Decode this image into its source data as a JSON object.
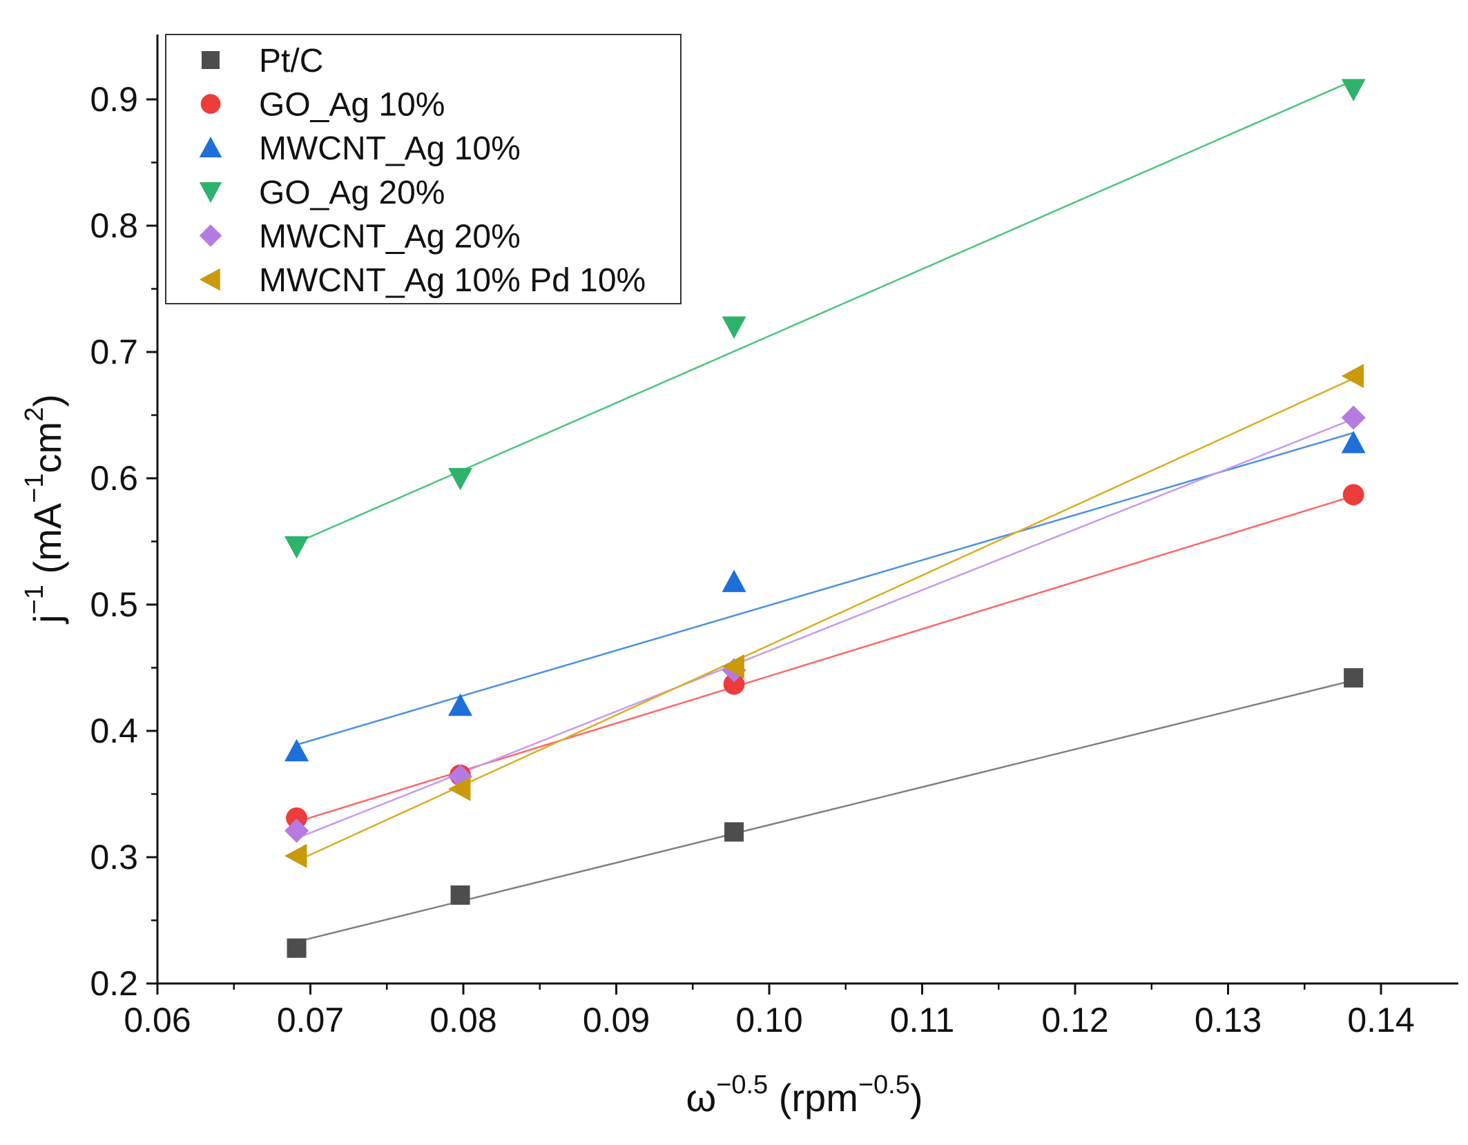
{
  "chart_data": {
    "type": "scatter",
    "title": "",
    "xlabel": {
      "base": "ω",
      "exp": "−0.5",
      "unit_pre": " (rpm",
      "unit_exp": "−0.5",
      "unit_post": ")"
    },
    "ylabel": {
      "base": "j",
      "exp": "−1",
      "unit_pre": " (mA",
      "unit_exp1": "−1",
      "unit_mid": "cm",
      "unit_exp2": "2",
      "unit_post": ")"
    },
    "xlim": [
      0.06,
      0.145
    ],
    "ylim": [
      0.2,
      0.95
    ],
    "x_ticks": [
      "0.06",
      "0.07",
      "0.08",
      "0.09",
      "0.10",
      "0.11",
      "0.12",
      "0.13",
      "0.14"
    ],
    "x_tick_values": [
      0.06,
      0.07,
      0.08,
      0.09,
      0.1,
      0.11,
      0.12,
      0.13,
      0.14
    ],
    "y_ticks": [
      "0.2",
      "0.3",
      "0.4",
      "0.5",
      "0.6",
      "0.7",
      "0.8",
      "0.9"
    ],
    "y_tick_values": [
      0.2,
      0.3,
      0.4,
      0.5,
      0.6,
      0.7,
      0.8,
      0.9
    ],
    "grid": false,
    "legend_position": "top-left",
    "x": [
      0.0691,
      0.0798,
      0.0977,
      0.1382
    ],
    "series": [
      {
        "name": "Pt/C",
        "marker": "square",
        "color": "#4d4d4d",
        "line_color": "#808080",
        "values": [
          0.228,
          0.27,
          0.32,
          0.442
        ],
        "fit": [
          0.233,
          0.44
        ]
      },
      {
        "name": "GO_Ag 10%",
        "marker": "circle",
        "color": "#ee3b3b",
        "line_color": "#ff6666",
        "values": [
          0.331,
          0.365,
          0.437,
          0.587
        ],
        "fit": [
          0.328,
          0.586
        ]
      },
      {
        "name": "MWCNT_Ag 10%",
        "marker": "triangle-up",
        "color": "#1e6fd9",
        "line_color": "#4a90e2",
        "values": [
          0.384,
          0.42,
          0.518,
          0.628
        ],
        "fit": [
          0.389,
          0.636
        ]
      },
      {
        "name": "GO_Ag 20%",
        "marker": "triangle-down",
        "color": "#2db36b",
        "line_color": "#4cc47e",
        "values": [
          0.546,
          0.6,
          0.72,
          0.908
        ],
        "fit": [
          0.549,
          0.915
        ]
      },
      {
        "name": "MWCNT_Ag 20%",
        "marker": "diamond",
        "color": "#b57be0",
        "line_color": "#c69aef",
        "values": [
          0.321,
          0.364,
          0.448,
          0.648
        ],
        "fit": [
          0.315,
          0.647
        ]
      },
      {
        "name": "MWCNT_Ag 10% Pd 10%",
        "marker": "triangle-left",
        "color": "#c99a0a",
        "line_color": "#d9ad26",
        "values": [
          0.301,
          0.354,
          0.451,
          0.681
        ],
        "fit": [
          0.297,
          0.679
        ]
      }
    ]
  }
}
